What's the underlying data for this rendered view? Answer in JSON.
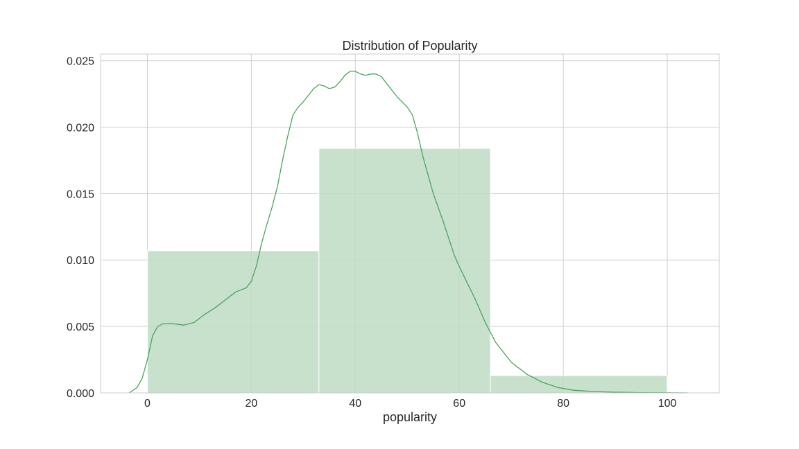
{
  "chart_data": {
    "type": "bar",
    "subtype": "histogram-with-kde",
    "title": "Distribution of Popularity",
    "xlabel": "popularity",
    "ylabel": "",
    "xlim": [
      -9,
      110
    ],
    "ylim": [
      0,
      0.0255
    ],
    "xticks": [
      0,
      20,
      40,
      60,
      80,
      100
    ],
    "xtick_labels": [
      "0",
      "20",
      "40",
      "60",
      "80",
      "100"
    ],
    "yticks": [
      0,
      0.005,
      0.01,
      0.015,
      0.02,
      0.025
    ],
    "ytick_labels": [
      "0.000",
      "0.005",
      "0.010",
      "0.015",
      "0.020",
      "0.025"
    ],
    "grid": true,
    "colors": {
      "bar": "#bedcc3",
      "kde": "#4aa35d",
      "grid": "#cfcfcf",
      "frame": "#cccccc"
    },
    "bins": [
      {
        "x0": 0,
        "x1": 33,
        "value": 0.0107
      },
      {
        "x0": 33,
        "x1": 66,
        "value": 0.0184
      },
      {
        "x0": 66,
        "x1": 100,
        "value": 0.0013
      }
    ],
    "kde": {
      "x": [
        -3.5,
        -2,
        -1,
        0,
        1,
        2,
        3,
        5,
        7,
        9,
        11,
        13,
        15,
        17,
        19,
        20,
        21,
        22,
        23,
        24,
        25,
        26,
        27,
        28,
        29,
        30,
        31,
        32,
        33,
        34,
        35,
        36,
        37,
        38,
        39,
        40,
        41,
        42,
        43,
        44,
        45,
        46,
        48,
        50,
        51,
        52,
        53,
        55,
        57,
        59,
        60,
        61,
        63,
        65,
        67,
        70,
        73,
        76,
        79,
        82,
        86,
        90,
        95,
        100,
        104
      ],
      "y": [
        0,
        0.0004,
        0.0011,
        0.0025,
        0.0043,
        0.005,
        0.0052,
        0.0052,
        0.0051,
        0.0053,
        0.0059,
        0.0064,
        0.007,
        0.0076,
        0.0079,
        0.0084,
        0.0096,
        0.0113,
        0.0127,
        0.014,
        0.0155,
        0.0175,
        0.0193,
        0.0209,
        0.0215,
        0.0219,
        0.0224,
        0.0229,
        0.0232,
        0.0231,
        0.0229,
        0.023,
        0.0234,
        0.0239,
        0.0242,
        0.0242,
        0.024,
        0.0239,
        0.024,
        0.024,
        0.0238,
        0.0233,
        0.0223,
        0.0215,
        0.0209,
        0.0195,
        0.0178,
        0.015,
        0.0128,
        0.0104,
        0.0095,
        0.0087,
        0.0071,
        0.0053,
        0.0038,
        0.0023,
        0.0014,
        0.0008,
        0.0004,
        0.0002,
        0.0001,
        5e-05,
        2e-05,
        1e-05,
        0
      ]
    }
  }
}
